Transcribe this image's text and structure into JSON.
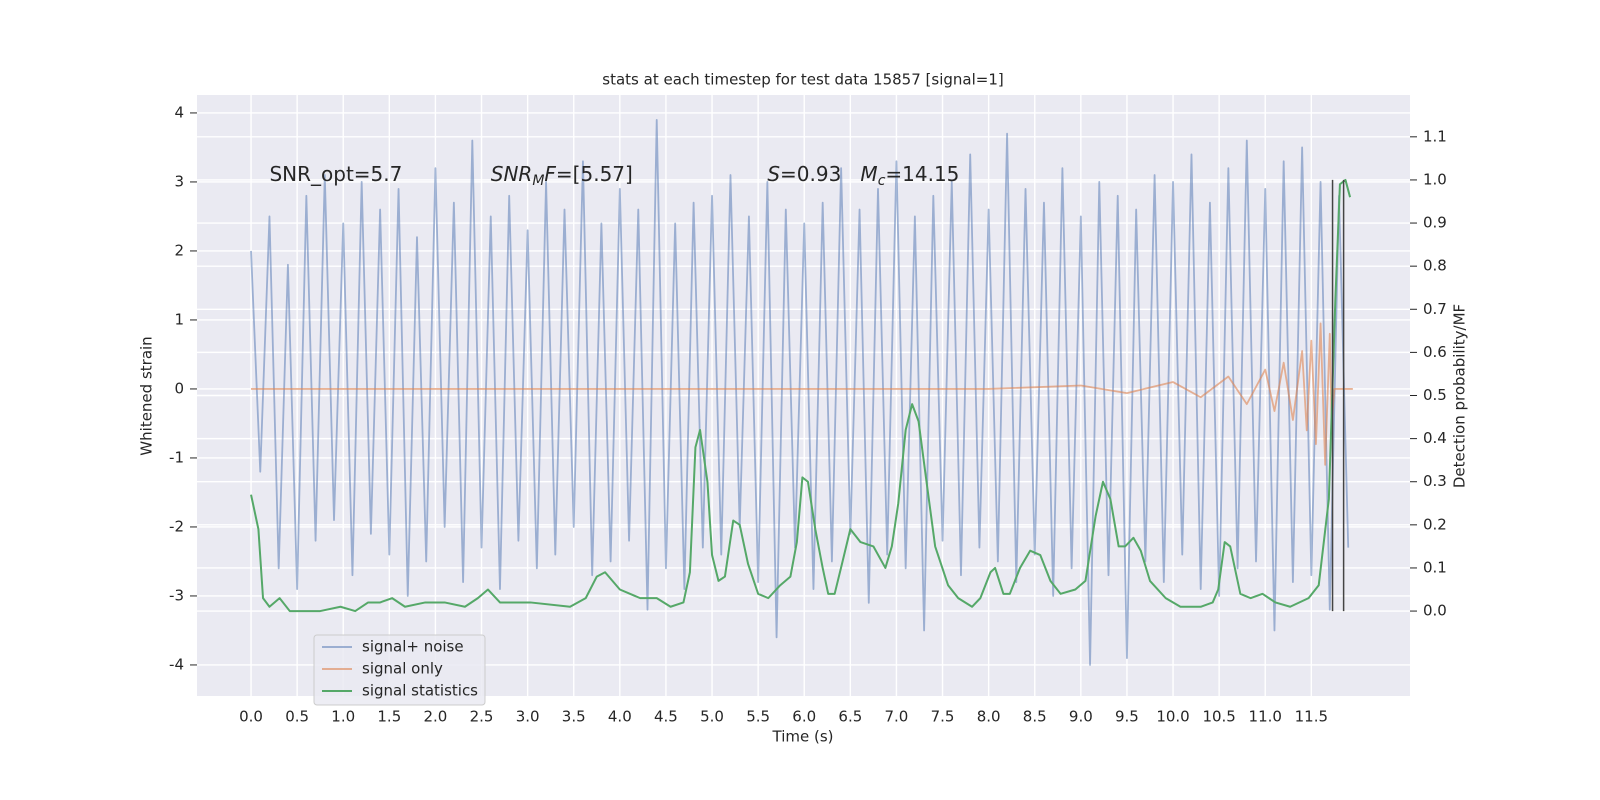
{
  "chart_data": {
    "type": "line",
    "title": "stats at each timestep for test data 15857 [signal=1]",
    "x_label": "Time (s)",
    "y_label": "Whitened strain",
    "y2_label": "Detection probability/MF",
    "xlim": [
      -0.586,
      12.57
    ],
    "ylim": [
      -4.45,
      4.26
    ],
    "y2lim": [
      -0.197,
      1.197
    ],
    "xticks": [
      {
        "value": 0,
        "label": "0.0"
      },
      0.5,
      {
        "value": 1,
        "label": "1.0"
      },
      1.5,
      {
        "value": 2,
        "label": "2.0"
      },
      2.5,
      {
        "value": 3,
        "label": "3.0"
      },
      3.5,
      {
        "value": 4,
        "label": "4.0"
      },
      4.5,
      {
        "value": 5,
        "label": "5.0"
      },
      5.5,
      {
        "value": 6,
        "label": "6.0"
      },
      6.5,
      {
        "value": 7,
        "label": "7.0"
      },
      7.5,
      {
        "value": 8,
        "label": "8.0"
      },
      8.5,
      {
        "value": 9,
        "label": "9.0"
      },
      9.5,
      {
        "value": 10,
        "label": "10.0"
      },
      10.5,
      {
        "value": 11,
        "label": "11.0"
      },
      11.5
    ],
    "yticks": [
      -4,
      -3,
      -2,
      -1,
      0,
      1,
      2,
      3,
      4
    ],
    "y2ticks": [
      {
        "value": 0,
        "label": "0.0"
      },
      0.1,
      0.2,
      0.3,
      0.4,
      0.5,
      0.6,
      0.7,
      0.8,
      0.9,
      {
        "value": 1,
        "label": "1.0"
      },
      1.1
    ],
    "grid": true,
    "legend": "lower left",
    "series": [
      {
        "name": "signal+ noise",
        "color": "#4c72b0",
        "alpha": 0.5,
        "x": [
          0,
          0.1,
          0.2,
          0.3,
          0.4,
          0.5,
          0.6,
          0.7,
          0.8,
          0.9,
          1,
          1.1,
          1.2,
          1.3,
          1.4,
          1.5,
          1.6,
          1.7,
          1.8,
          1.9,
          2,
          2.1,
          2.2,
          2.3,
          2.4,
          2.5,
          2.6,
          2.7,
          2.8,
          2.9,
          3,
          3.1,
          3.2,
          3.3,
          3.4,
          3.5,
          3.6,
          3.7,
          3.8,
          3.9,
          4,
          4.1,
          4.2,
          4.3,
          4.4,
          4.5,
          4.6,
          4.7,
          4.8,
          4.9,
          5,
          5.1,
          5.2,
          5.3,
          5.4,
          5.5,
          5.6,
          5.7,
          5.8,
          5.9,
          6,
          6.1,
          6.2,
          6.3,
          6.4,
          6.5,
          6.6,
          6.7,
          6.8,
          6.9,
          7,
          7.1,
          7.2,
          7.3,
          7.4,
          7.5,
          7.6,
          7.7,
          7.8,
          7.9,
          8,
          8.1,
          8.2,
          8.3,
          8.4,
          8.5,
          8.6,
          8.7,
          8.8,
          8.9,
          9,
          9.1,
          9.2,
          9.3,
          9.4,
          9.5,
          9.6,
          9.7,
          9.8,
          9.9,
          10,
          10.1,
          10.2,
          10.3,
          10.4,
          10.5,
          10.6,
          10.7,
          10.8,
          10.9,
          11,
          11.1,
          11.2,
          11.3,
          11.4,
          11.5,
          11.6,
          11.7,
          11.8,
          11.9
        ],
        "values": [
          2.0,
          -1.2,
          2.5,
          -2.6,
          1.8,
          -2.9,
          2.8,
          -2.2,
          3.1,
          -1.9,
          2.4,
          -2.7,
          3.0,
          -2.1,
          2.6,
          -2.4,
          2.9,
          -3.0,
          2.2,
          -2.5,
          3.2,
          -2.0,
          2.7,
          -2.8,
          3.6,
          -2.3,
          2.5,
          -2.9,
          2.8,
          -2.2,
          2.3,
          -2.6,
          3.0,
          -2.4,
          2.6,
          -2.0,
          3.3,
          -2.7,
          2.4,
          -2.5,
          2.9,
          -2.2,
          2.6,
          -3.2,
          3.9,
          -2.6,
          2.4,
          -2.9,
          2.7,
          -2.3,
          2.8,
          -2.4,
          3.1,
          -2.0,
          2.5,
          -2.8,
          3.0,
          -3.6,
          2.6,
          -2.3,
          2.4,
          -2.9,
          2.7,
          -2.5,
          3.2,
          -2.1,
          2.6,
          -3.1,
          2.9,
          -2.4,
          3.3,
          -2.6,
          2.5,
          -3.5,
          2.8,
          -2.2,
          3.0,
          -2.7,
          3.4,
          -2.3,
          2.6,
          -2.5,
          3.7,
          -2.8,
          2.9,
          -2.4,
          2.7,
          -3.0,
          3.2,
          -2.6,
          2.5,
          -4.0,
          3.0,
          -2.7,
          2.8,
          -3.9,
          2.6,
          -2.5,
          3.1,
          -2.8,
          3.0,
          -2.4,
          3.4,
          -2.9,
          2.7,
          -3.0,
          3.2,
          -2.6,
          3.6,
          -2.5,
          2.9,
          -3.5,
          3.3,
          -2.8,
          3.5,
          -2.7,
          3.0,
          -3.2,
          2.8,
          -2.3
        ]
      },
      {
        "name": "signal only",
        "color": "#dd8452",
        "alpha": 0.6,
        "x": [
          0,
          3,
          6,
          8,
          9,
          9.5,
          10,
          10.3,
          10.6,
          10.8,
          11,
          11.1,
          11.2,
          11.3,
          11.4,
          11.45,
          11.5,
          11.55,
          11.6,
          11.65,
          11.7,
          11.72,
          11.75,
          11.95
        ],
        "values": [
          0,
          0,
          0,
          0,
          0.05,
          -0.06,
          0.1,
          -0.12,
          0.18,
          -0.22,
          0.28,
          -0.32,
          0.38,
          -0.45,
          0.55,
          -0.6,
          0.7,
          -0.8,
          0.95,
          -1.1,
          0.8,
          -0.5,
          0,
          0
        ]
      },
      {
        "name": "signal statistics",
        "color": "#55a868",
        "alpha": 1,
        "axis": "y2",
        "x": [
          0,
          0.08,
          0.13,
          0.2,
          0.31,
          0.42,
          0.75,
          0.97,
          1.13,
          1.27,
          1.4,
          1.53,
          1.67,
          1.89,
          2.1,
          2.32,
          2.46,
          2.57,
          2.7,
          3.03,
          3.46,
          3.63,
          3.75,
          3.84,
          4.0,
          4.22,
          4.4,
          4.55,
          4.69,
          4.76,
          4.82,
          4.87,
          4.95,
          5.0,
          5.07,
          5.14,
          5.23,
          5.3,
          5.39,
          5.5,
          5.61,
          5.74,
          5.85,
          5.92,
          5.98,
          6.04,
          6.12,
          6.2,
          6.26,
          6.33,
          6.41,
          6.5,
          6.61,
          6.75,
          6.88,
          6.95,
          7.02,
          7.1,
          7.17,
          7.24,
          7.32,
          7.42,
          7.56,
          7.67,
          7.82,
          7.91,
          8.02,
          8.07,
          8.16,
          8.23,
          8.34,
          8.45,
          8.56,
          8.67,
          8.78,
          8.94,
          9.05,
          9.16,
          9.24,
          9.32,
          9.41,
          9.48,
          9.57,
          9.65,
          9.75,
          9.92,
          10.08,
          10.3,
          10.43,
          10.49,
          10.56,
          10.62,
          10.73,
          10.84,
          10.97,
          11.11,
          11.27,
          11.47,
          11.58,
          11.69,
          11.76,
          11.81,
          11.87,
          11.92
        ],
        "values": [
          0.27,
          0.19,
          0.03,
          0.01,
          0.03,
          0.0,
          0.0,
          0.01,
          0.0,
          0.02,
          0.02,
          0.03,
          0.01,
          0.02,
          0.02,
          0.01,
          0.03,
          0.05,
          0.02,
          0.02,
          0.01,
          0.03,
          0.08,
          0.09,
          0.05,
          0.03,
          0.03,
          0.01,
          0.02,
          0.09,
          0.38,
          0.42,
          0.3,
          0.13,
          0.07,
          0.08,
          0.21,
          0.2,
          0.11,
          0.04,
          0.03,
          0.06,
          0.08,
          0.16,
          0.31,
          0.3,
          0.19,
          0.1,
          0.04,
          0.04,
          0.11,
          0.19,
          0.16,
          0.15,
          0.1,
          0.15,
          0.25,
          0.42,
          0.48,
          0.44,
          0.31,
          0.15,
          0.06,
          0.03,
          0.01,
          0.03,
          0.09,
          0.1,
          0.04,
          0.04,
          0.1,
          0.14,
          0.13,
          0.07,
          0.04,
          0.05,
          0.07,
          0.22,
          0.3,
          0.26,
          0.15,
          0.15,
          0.17,
          0.14,
          0.07,
          0.03,
          0.01,
          0.01,
          0.02,
          0.05,
          0.16,
          0.15,
          0.04,
          0.03,
          0.04,
          0.02,
          0.01,
          0.03,
          0.06,
          0.26,
          0.72,
          0.99,
          1.0,
          0.96
        ]
      }
    ],
    "vlines": [
      {
        "x": 11.73,
        "y2": [
          0,
          1
        ]
      },
      {
        "x": 11.85,
        "y2": [
          0,
          1
        ]
      }
    ],
    "vline_color": "#444444",
    "annotations": [
      {
        "x": 0.2,
        "y": 3.1,
        "parts": [
          {
            "text": "SNR_opt=5.7"
          }
        ]
      },
      {
        "x": 2.6,
        "y": 3.1,
        "parts": [
          {
            "text": "SNR",
            "italic": true
          },
          {
            "text": "M",
            "italic": true,
            "sub": true
          },
          {
            "text": "F",
            "italic": true
          },
          {
            "text": "=[5.57]"
          }
        ]
      },
      {
        "x": 5.6,
        "y": 3.1,
        "parts": [
          {
            "text": "S",
            "italic": true
          },
          {
            "text": "=0.93   "
          },
          {
            "text": "M",
            "italic": true
          },
          {
            "text": "c",
            "italic": true,
            "sub": true
          },
          {
            "text": "=14.15"
          }
        ]
      }
    ]
  }
}
